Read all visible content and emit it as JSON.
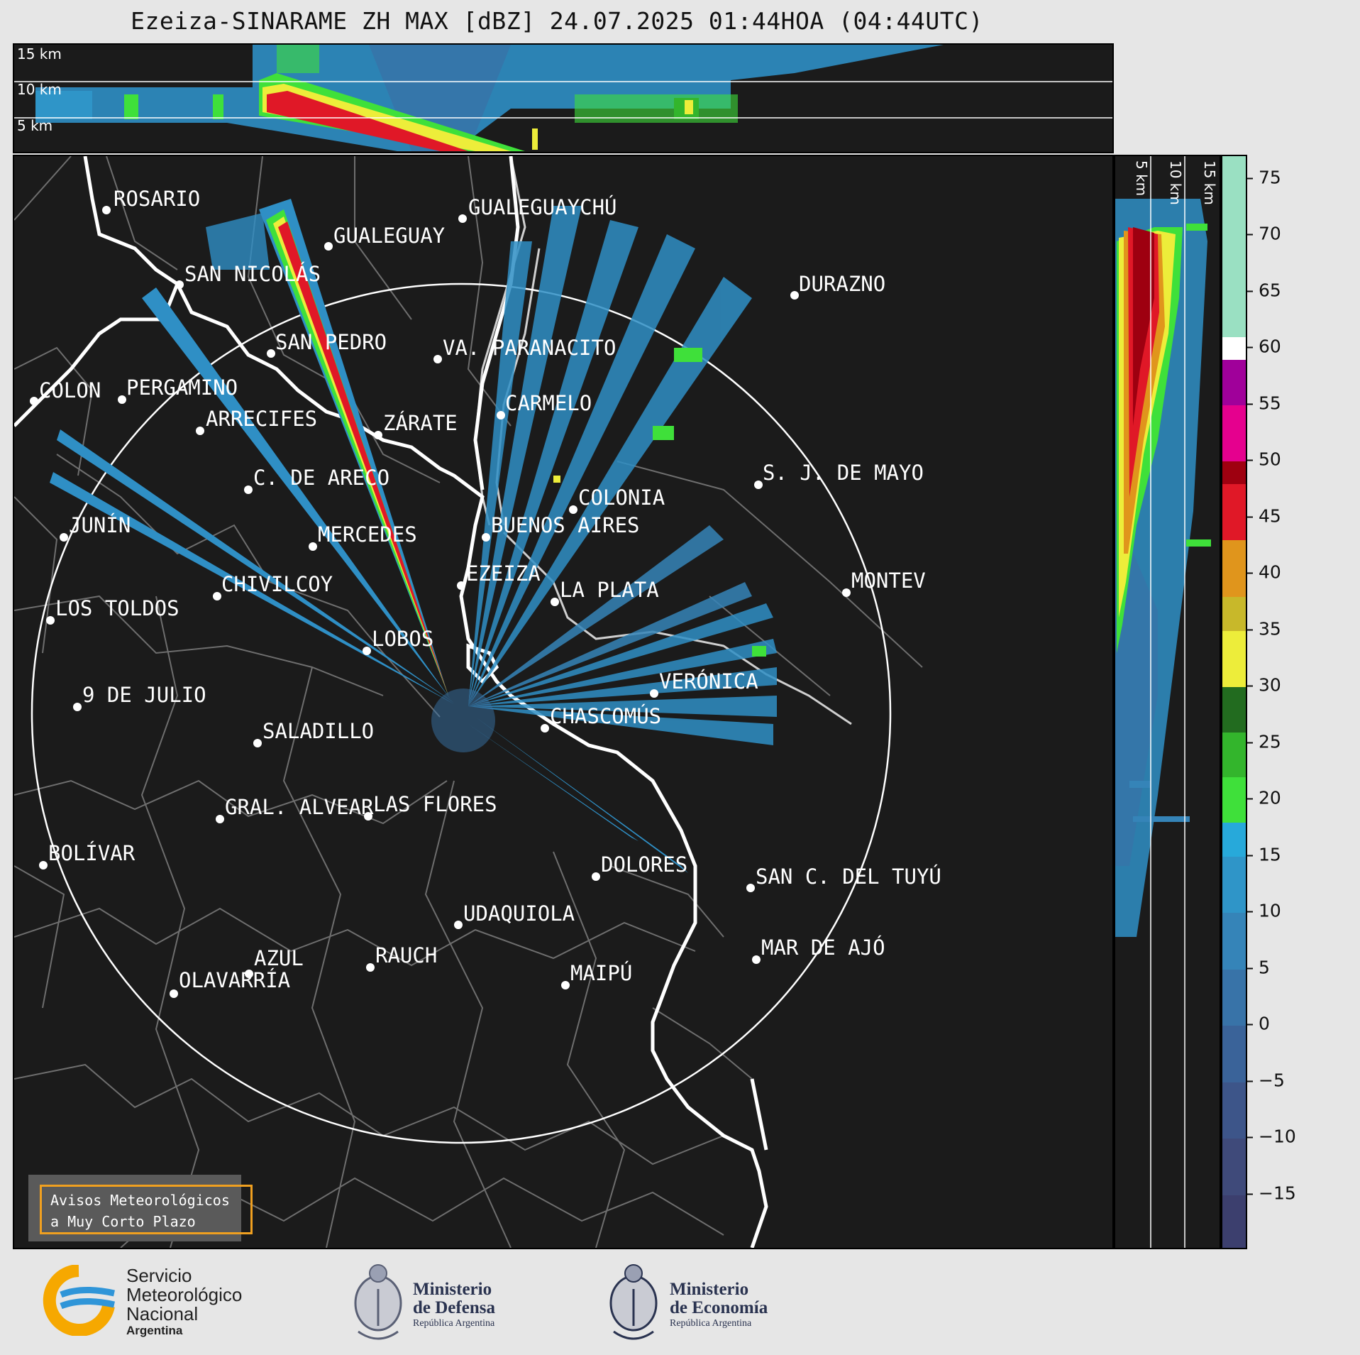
{
  "title": "Ezeiza-SINARAME ZH MAX [dBZ] 24.07.2025 01:44HOA (04:44UTC)",
  "altitude_labels_top": [
    "15 km",
    "10 km",
    "5 km"
  ],
  "altitude_labels_side": [
    "5 km",
    "10 km",
    "15 km"
  ],
  "cities": [
    {
      "name": "ROSARIO"
    },
    {
      "name": "GUALEGUAYCHÚ"
    },
    {
      "name": "GUALEGUAY"
    },
    {
      "name": "SAN NICOLÁS"
    },
    {
      "name": "DURAZNO"
    },
    {
      "name": "SAN PEDRO"
    },
    {
      "name": "VA. PARANACITO"
    },
    {
      "name": "COLON"
    },
    {
      "name": "PERGAMINO"
    },
    {
      "name": "CARMELO"
    },
    {
      "name": "ARRECIFES"
    },
    {
      "name": "ZÁRATE"
    },
    {
      "name": "S. J. DE MAYO"
    },
    {
      "name": "C. DE ARECO"
    },
    {
      "name": "COLONIA"
    },
    {
      "name": "JUNÍN"
    },
    {
      "name": "BUENOS AIRES"
    },
    {
      "name": "MERCEDES"
    },
    {
      "name": "EZEIZA"
    },
    {
      "name": "MONTEV"
    },
    {
      "name": "CHIVILCOY"
    },
    {
      "name": "LA PLATA"
    },
    {
      "name": "LOS TOLDOS"
    },
    {
      "name": "LOBOS"
    },
    {
      "name": "VERÓNICA"
    },
    {
      "name": "9 DE JULIO"
    },
    {
      "name": "CHASCOMÚS"
    },
    {
      "name": "SALADILLO"
    },
    {
      "name": "GRAL. ALVEAR"
    },
    {
      "name": "LAS FLORES"
    },
    {
      "name": "BOLÍVAR"
    },
    {
      "name": "DOLORES"
    },
    {
      "name": "SAN C. DEL TUYÚ"
    },
    {
      "name": "UDAQUIOLA"
    },
    {
      "name": "MAR DE AJÓ"
    },
    {
      "name": "AZUL"
    },
    {
      "name": "RAUCH"
    },
    {
      "name": "MAIPÚ"
    },
    {
      "name": "OLAVARRÍA"
    }
  ],
  "warning_box": {
    "line1": "Avisos Meteorológicos",
    "line2": "a Muy Corto Plazo"
  },
  "colorbar": {
    "ticks": [
      "75",
      "70",
      "65",
      "60",
      "55",
      "50",
      "45",
      "40",
      "35",
      "30",
      "25",
      "20",
      "15",
      "10",
      "5",
      "0",
      "−5",
      "−10",
      "−15"
    ],
    "range": [
      -20,
      77
    ],
    "bands": [
      {
        "from": -20,
        "to": -15,
        "color": "#3c3f6e"
      },
      {
        "from": -15,
        "to": -10,
        "color": "#3f4a7a"
      },
      {
        "from": -10,
        "to": -5,
        "color": "#3d5589"
      },
      {
        "from": -5,
        "to": 0,
        "color": "#3a6399"
      },
      {
        "from": 0,
        "to": 5,
        "color": "#3873a8"
      },
      {
        "from": 5,
        "to": 10,
        "color": "#3584b8"
      },
      {
        "from": 10,
        "to": 15,
        "color": "#2f95c8"
      },
      {
        "from": 15,
        "to": 18,
        "color": "#27a9da"
      },
      {
        "from": 18,
        "to": 22,
        "color": "#3fe03a"
      },
      {
        "from": 22,
        "to": 26,
        "color": "#33b52c"
      },
      {
        "from": 26,
        "to": 30,
        "color": "#226b1f"
      },
      {
        "from": 30,
        "to": 35,
        "color": "#eded3a"
      },
      {
        "from": 35,
        "to": 38,
        "color": "#c8b82a"
      },
      {
        "from": 38,
        "to": 43,
        "color": "#e0951c"
      },
      {
        "from": 43,
        "to": 48,
        "color": "#e01827"
      },
      {
        "from": 48,
        "to": 50,
        "color": "#9e0010"
      },
      {
        "from": 50,
        "to": 55,
        "color": "#e5008e"
      },
      {
        "from": 55,
        "to": 59,
        "color": "#a0009a"
      },
      {
        "from": 59,
        "to": 61,
        "color": "#ffffff"
      },
      {
        "from": 61,
        "to": 77,
        "color": "#9ae0c2"
      }
    ]
  },
  "footer": {
    "smn": {
      "line1": "Servicio",
      "line2": "Meteorológico",
      "line3": "Nacional",
      "line4": "Argentina"
    },
    "defensa": {
      "line1": "Ministerio",
      "line2": "de Defensa",
      "line3": "República Argentina"
    },
    "economia": {
      "line1": "Ministerio",
      "line2": "de Economía",
      "line3": "República Argentina"
    }
  },
  "colors": {
    "background": "#1b1b1b",
    "warning_border": "#f0a020",
    "smn_orange": "#f6a800",
    "smn_blue": "#2f95d8"
  }
}
